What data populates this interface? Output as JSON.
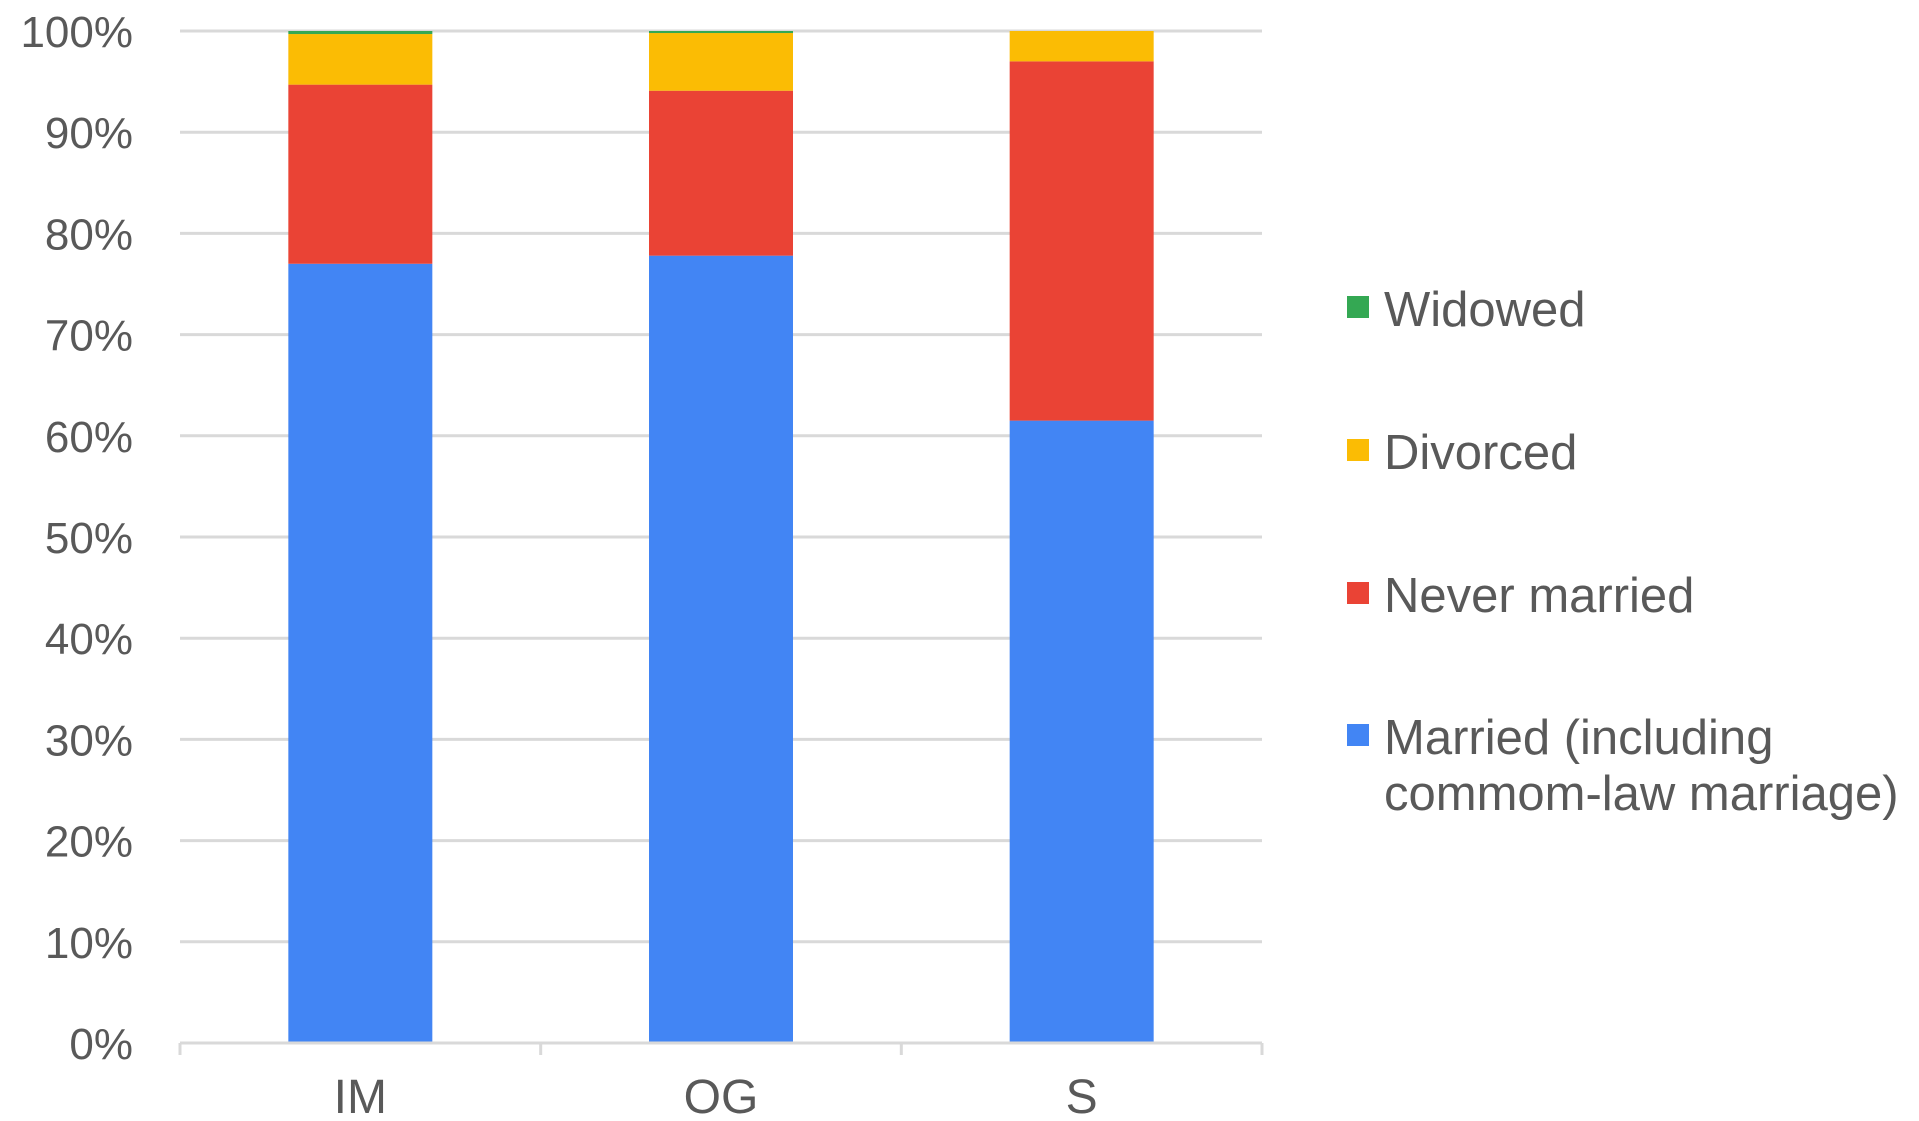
{
  "chart_data": {
    "type": "bar",
    "stacked": true,
    "percent": true,
    "categories": [
      "IM",
      "OG",
      "S"
    ],
    "series": [
      {
        "name": "Married (including commom-law marriage)",
        "color": "#4285f4",
        "values": [
          77.0,
          77.8,
          61.5
        ]
      },
      {
        "name": "Never married",
        "color": "#ea4335",
        "values": [
          17.7,
          16.3,
          35.5
        ]
      },
      {
        "name": "Divorced",
        "color": "#fbbc04",
        "values": [
          5.0,
          5.7,
          3.0
        ]
      },
      {
        "name": "Widowed",
        "color": "#34a853",
        "values": [
          0.3,
          0.2,
          0.0
        ]
      }
    ],
    "yticks": [
      "0%",
      "10%",
      "20%",
      "30%",
      "40%",
      "50%",
      "60%",
      "70%",
      "80%",
      "90%",
      "100%"
    ],
    "ylim": [
      0,
      100
    ],
    "grid": true,
    "legend_position": "right",
    "legend_entries": [
      {
        "name": "Widowed",
        "color": "#34a853",
        "lines": [
          "Widowed"
        ]
      },
      {
        "name": "Divorced",
        "color": "#fbbc04",
        "lines": [
          "Divorced"
        ]
      },
      {
        "name": "Never married",
        "color": "#ea4335",
        "lines": [
          "Never married"
        ]
      },
      {
        "name": "Married (including commom-law marriage)",
        "color": "#4285f4",
        "lines": [
          "Married (including",
          "commom-law marriage)"
        ]
      }
    ]
  }
}
